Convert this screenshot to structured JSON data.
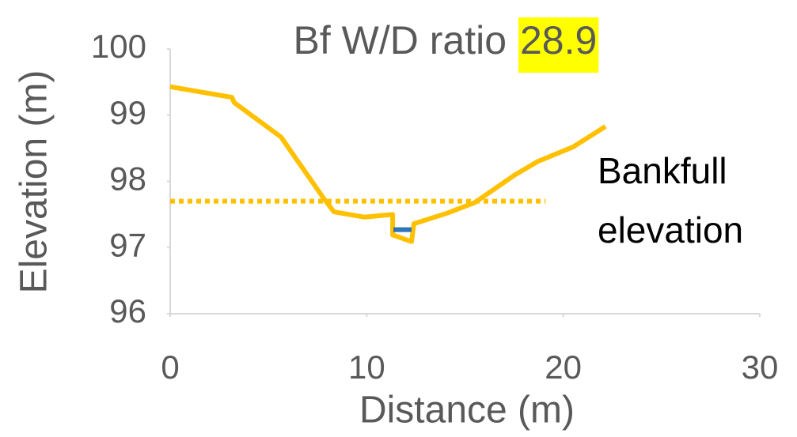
{
  "chart_data": {
    "type": "line",
    "title": "Bf W/D ratio",
    "title_highlight": "28.9",
    "highlight_color": "#ffff00",
    "xlabel": "Distance (m)",
    "ylabel": "Elevation (m)",
    "annotation": [
      "Bankfull",
      "elevation"
    ],
    "xlim": [
      0,
      30
    ],
    "xticks": [
      0,
      10,
      20,
      30
    ],
    "ylim": [
      96,
      100
    ],
    "yticks": [
      96,
      97,
      98,
      99,
      100
    ],
    "series": [
      {
        "color": "#ffc000",
        "style": "solid",
        "x": [
          0,
          3.14,
          3.26,
          5.64,
          7.77,
          8.33,
          9.87,
          11.32,
          11.32,
          12.28,
          12.4,
          14.1,
          15.5,
          17.5,
          18.7,
          20.5,
          22.15
        ],
        "values": [
          99.43,
          99.27,
          99.19,
          98.67,
          97.76,
          97.54,
          97.46,
          97.5,
          97.19,
          97.09,
          97.36,
          97.52,
          97.68,
          98.09,
          98.3,
          98.52,
          98.83
        ]
      },
      {
        "color": "#ffc000",
        "style": "dotted",
        "x": [
          0,
          19.1
        ],
        "values": [
          97.7,
          97.7
        ]
      },
      {
        "color": "#2e75b6",
        "style": "solid",
        "x": [
          11.36,
          12.28
        ],
        "values": [
          97.27,
          97.27
        ]
      }
    ]
  }
}
